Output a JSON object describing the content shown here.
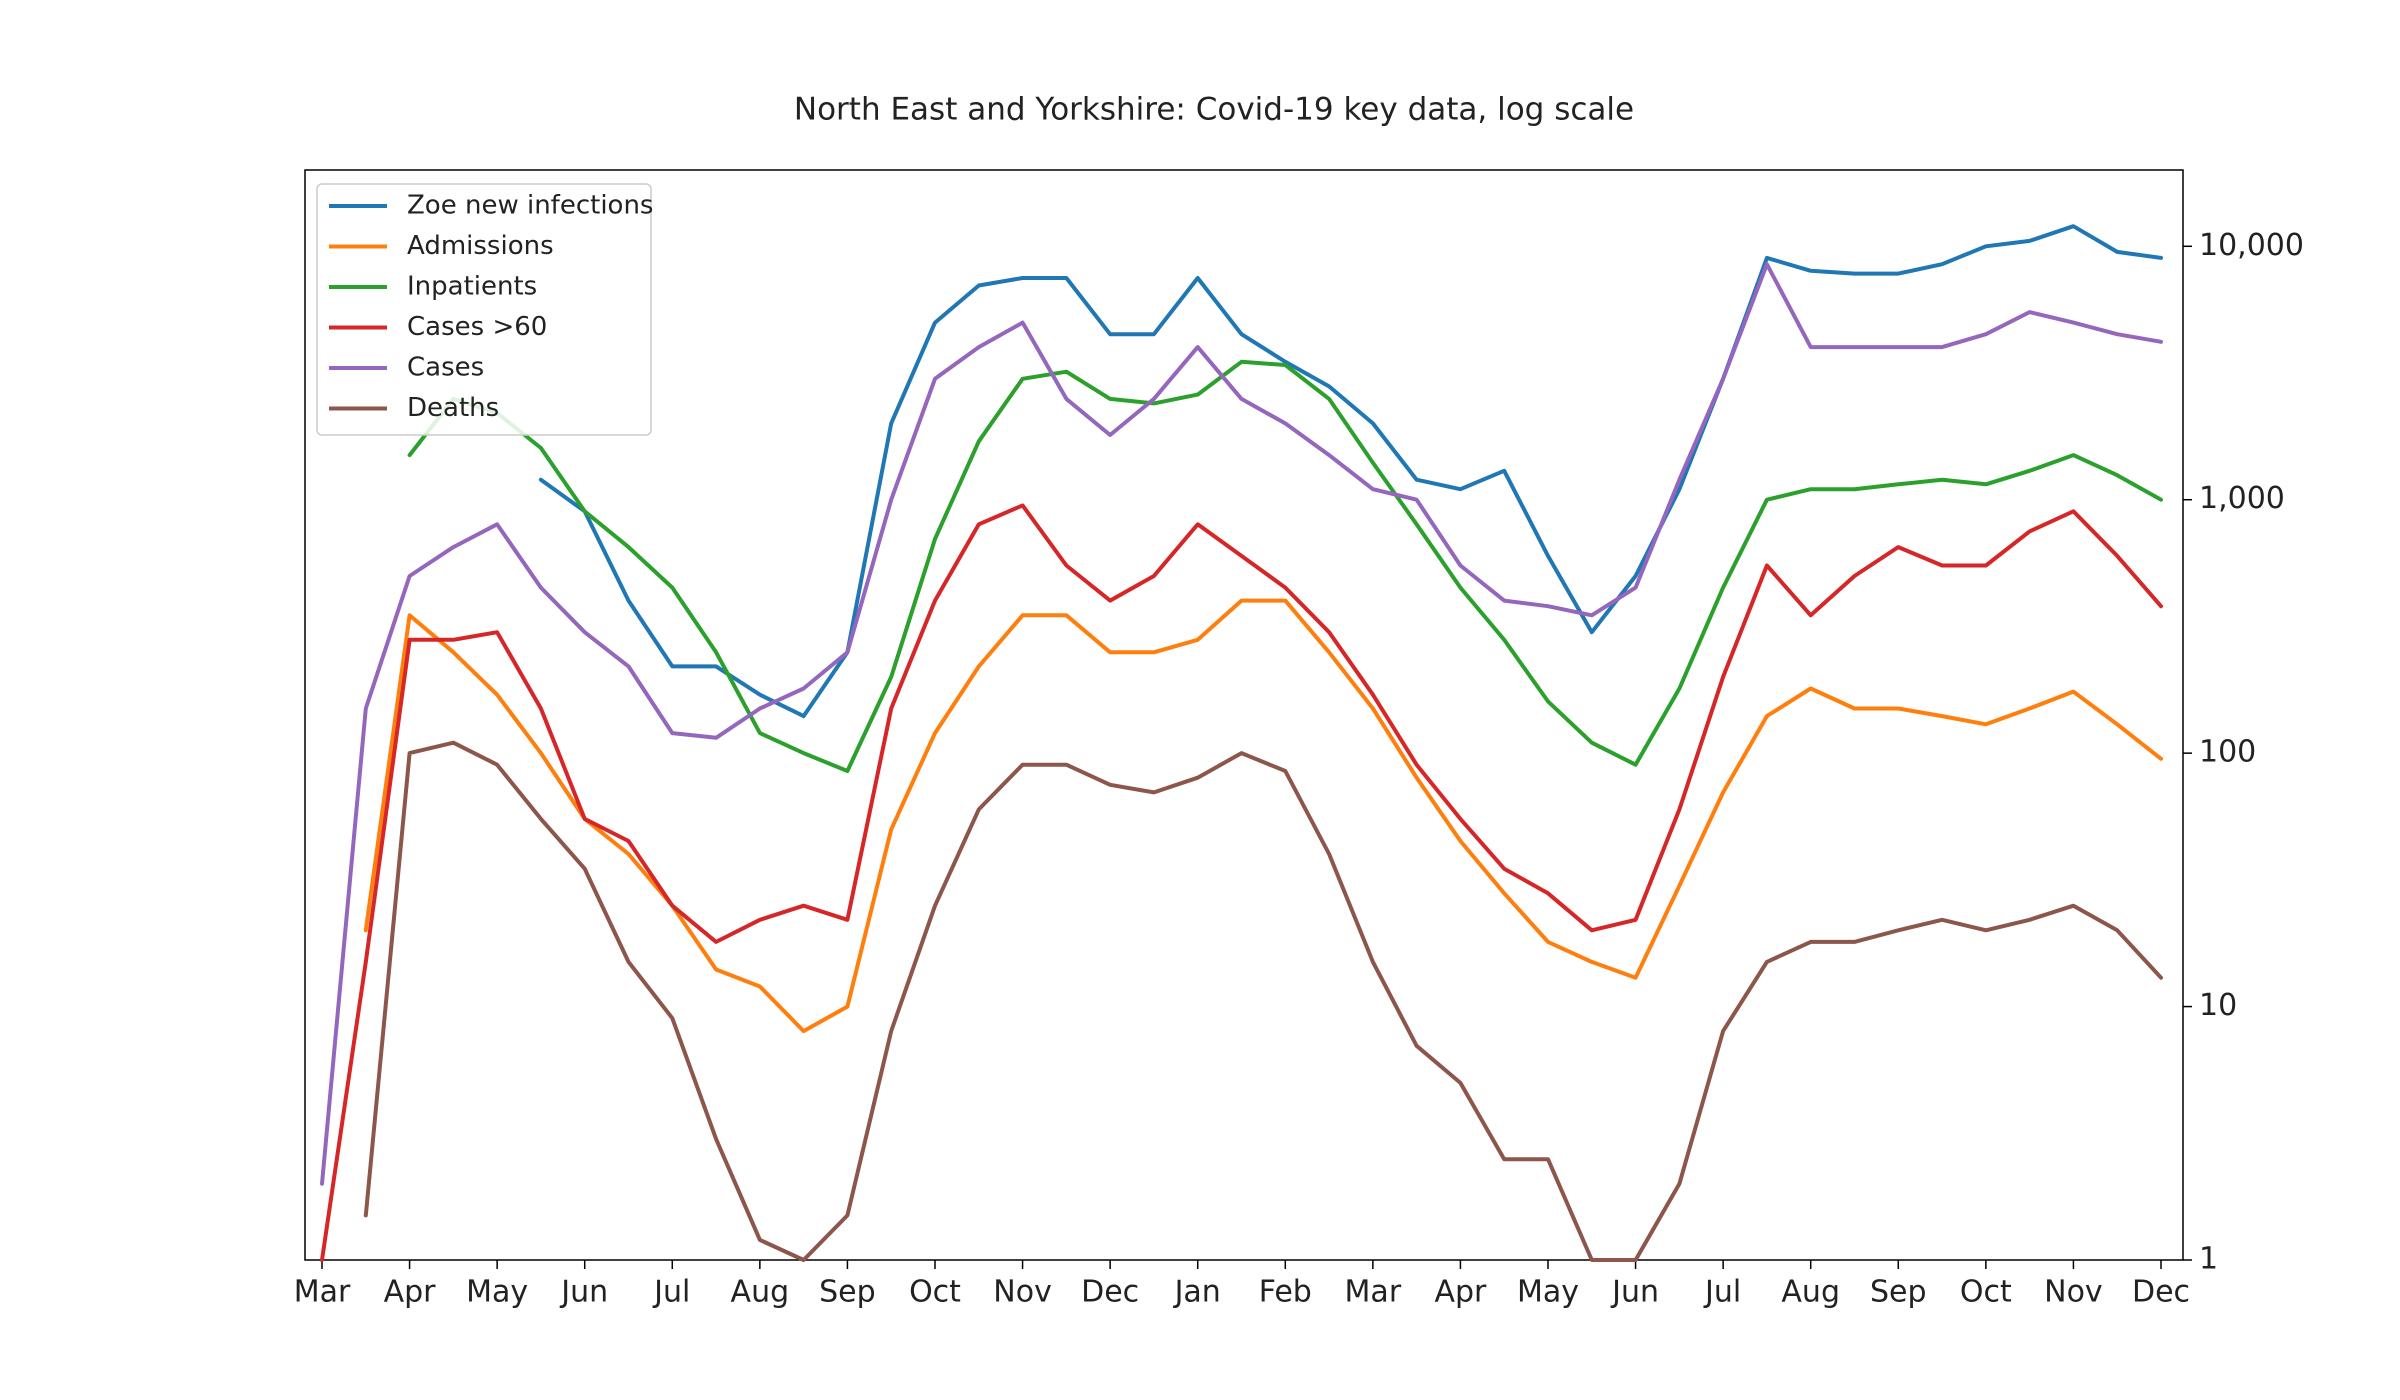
{
  "chart_data": {
    "type": "line",
    "title": "North East and Yorkshire: Covid-19 key data, log scale",
    "categories": [
      "Mar",
      null,
      "Apr",
      null,
      "May",
      null,
      "Jun",
      null,
      "Jul",
      null,
      "Aug",
      null,
      "Sep",
      null,
      "Oct",
      null,
      "Nov",
      null,
      "Dec",
      null,
      "Jan",
      null,
      "Feb",
      null,
      "Mar",
      null,
      "Apr",
      null,
      "May",
      null,
      "Jun",
      null,
      "Jul",
      null,
      "Aug",
      null,
      "Sep",
      null,
      "Oct",
      null,
      "Nov",
      null,
      "Dec"
    ],
    "yscale": "log",
    "ylim": [
      1,
      20000
    ],
    "yticks": [
      1,
      10,
      100,
      {
        "value": 1000,
        "label": "1,000"
      },
      {
        "value": 10000,
        "label": "10,000"
      }
    ],
    "yaxis_side": "right",
    "legend": "upper left",
    "series": [
      {
        "name": "Zoe new infections",
        "color": "#1f77b4",
        "values": [
          null,
          null,
          null,
          null,
          null,
          1200,
          900,
          400,
          220,
          220,
          170,
          140,
          250,
          2000,
          5000,
          7000,
          7500,
          7500,
          4500,
          4500,
          7500,
          4500,
          3500,
          2800,
          2000,
          1200,
          1100,
          1300,
          600,
          300,
          500,
          1100,
          3000,
          9000,
          8000,
          7800,
          7800,
          8500,
          10000,
          10500,
          12000,
          9500,
          9000
        ]
      },
      {
        "name": "Admissions",
        "color": "#ff7f0e",
        "values": [
          null,
          20,
          350,
          250,
          170,
          100,
          55,
          40,
          25,
          14,
          12,
          8,
          10,
          50,
          120,
          220,
          350,
          350,
          250,
          250,
          280,
          400,
          400,
          250,
          150,
          80,
          45,
          28,
          18,
          15,
          13,
          30,
          70,
          140,
          180,
          150,
          150,
          140,
          130,
          150,
          175,
          130,
          95
        ]
      },
      {
        "name": "Inpatients",
        "color": "#2ca02c",
        "values": [
          null,
          null,
          1500,
          2500,
          2200,
          1600,
          900,
          650,
          450,
          250,
          120,
          100,
          85,
          200,
          700,
          1700,
          3000,
          3200,
          2500,
          2400,
          2600,
          3500,
          3400,
          2500,
          1400,
          800,
          450,
          280,
          160,
          110,
          90,
          180,
          450,
          1000,
          1100,
          1100,
          1150,
          1200,
          1150,
          1300,
          1500,
          1250,
          1000
        ]
      },
      {
        "name": "Cases >60",
        "color": "#d62728",
        "values": [
          1,
          15,
          280,
          280,
          300,
          150,
          55,
          45,
          25,
          18,
          22,
          25,
          22,
          150,
          400,
          800,
          950,
          550,
          400,
          500,
          800,
          600,
          450,
          300,
          170,
          90,
          55,
          35,
          28,
          20,
          22,
          60,
          200,
          550,
          350,
          500,
          650,
          550,
          550,
          750,
          900,
          600,
          380
        ]
      },
      {
        "name": "Cases",
        "color": "#9467bd",
        "values": [
          2,
          150,
          500,
          650,
          800,
          450,
          300,
          220,
          120,
          115,
          150,
          180,
          250,
          1000,
          3000,
          4000,
          5000,
          2500,
          1800,
          2500,
          4000,
          2500,
          2000,
          1500,
          1100,
          1000,
          550,
          400,
          380,
          350,
          450,
          1200,
          3000,
          8500,
          4000,
          4000,
          4000,
          4000,
          4500,
          5500,
          5000,
          4500,
          4200
        ]
      },
      {
        "name": "Deaths",
        "color": "#8c564b",
        "values": [
          null,
          1.5,
          100,
          110,
          90,
          55,
          35,
          15,
          9,
          3,
          1.2,
          1,
          1.5,
          8,
          25,
          60,
          90,
          90,
          75,
          70,
          80,
          100,
          85,
          40,
          15,
          7,
          5,
          2.5,
          2.5,
          1,
          1,
          2,
          8,
          15,
          18,
          18,
          20,
          22,
          20,
          22,
          25,
          20,
          13
        ]
      }
    ]
  }
}
